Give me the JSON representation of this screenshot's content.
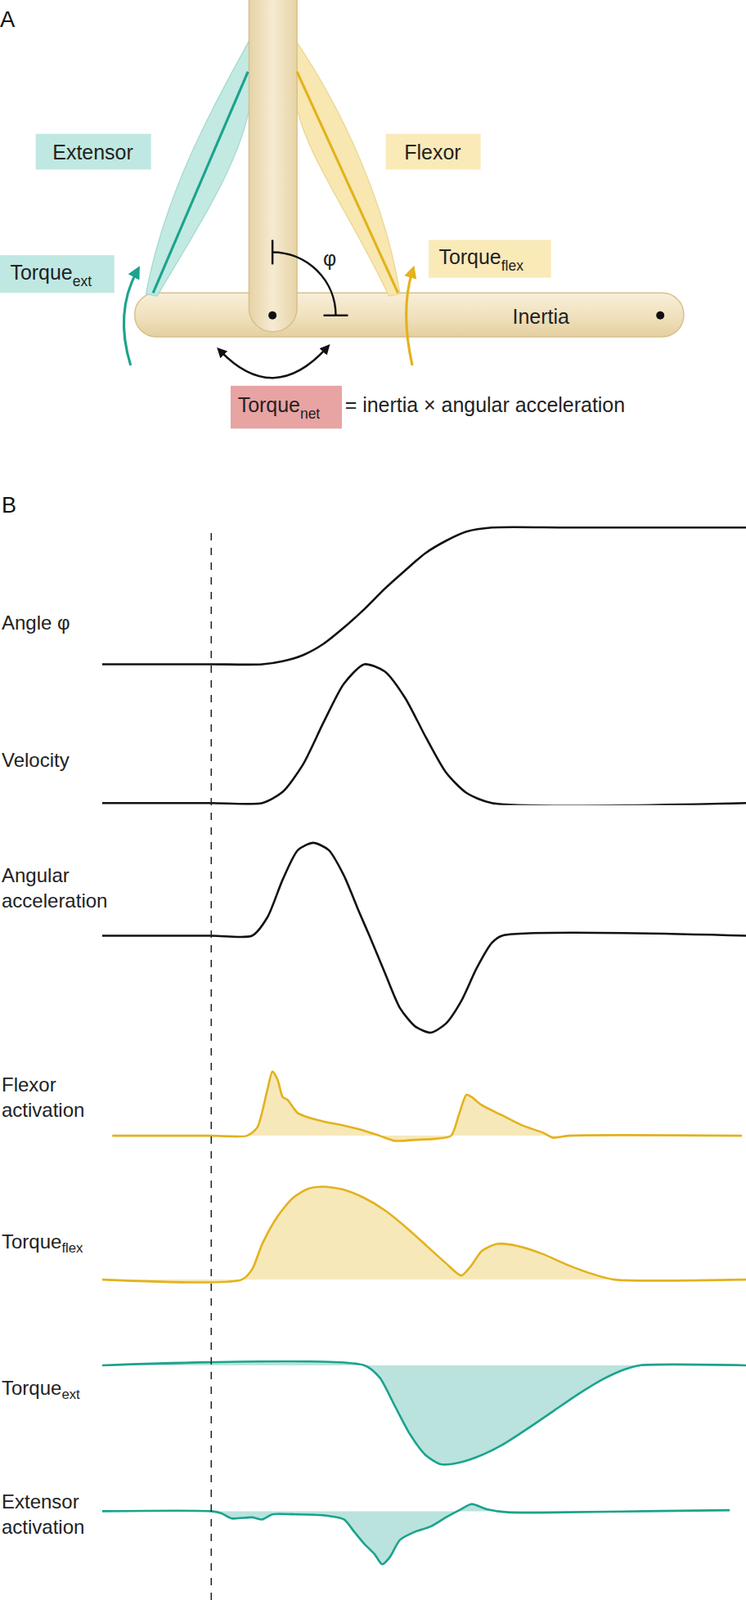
{
  "panel_a": {
    "label": "A",
    "extensor": "Extensor",
    "flexor": "Flexor",
    "torque_ext": {
      "text": "Torque",
      "sub": "ext"
    },
    "torque_flex": {
      "text": "Torque",
      "sub": "flex"
    },
    "angle_symbol": "φ",
    "inertia": "Inertia",
    "equation": {
      "term": {
        "text": "Torque",
        "sub": "net"
      },
      "rest": "= inertia × angular acceleration"
    }
  },
  "panel_b": {
    "label": "B",
    "event_x": 0
  },
  "chart_data": [
    {
      "type": "line",
      "ylabel": [
        "Angle φ"
      ],
      "color": "#111111",
      "tick_labels": false,
      "xlim": [
        -21.4,
        104.8
      ],
      "ylim": [
        -2,
        140
      ],
      "x": [
        -21.4,
        0,
        10,
        14,
        18,
        22,
        26,
        30,
        34,
        38,
        42,
        46,
        50,
        55,
        70,
        104.8
      ],
      "values": [
        0,
        0,
        0,
        3,
        9,
        20,
        36,
        54,
        74,
        92,
        109,
        121,
        130,
        134,
        134,
        134
      ]
    },
    {
      "type": "line",
      "ylabel": [
        "Velocity"
      ],
      "color": "#111111",
      "tick_labels": false,
      "xlim": [
        -21.4,
        104.8
      ],
      "ylim": [
        -2,
        140
      ],
      "x": [
        -21.4,
        0,
        10,
        14,
        18,
        22,
        26,
        30,
        34,
        38,
        42,
        46,
        50,
        55,
        104.8
      ],
      "values": [
        0,
        0,
        0,
        11,
        38,
        79,
        117,
        136,
        129,
        103,
        65,
        30,
        10,
        0,
        0
      ]
    },
    {
      "type": "line",
      "ylabel": [
        "Angular",
        "acceleration"
      ],
      "color": "#111111",
      "tick_labels": false,
      "xlim": [
        -21.4,
        104.8
      ],
      "ylim": [
        -100,
        100
      ],
      "x": [
        -21.4,
        0,
        8,
        11,
        14,
        17,
        20,
        23,
        26,
        29,
        31,
        34,
        37,
        40,
        43,
        46,
        49,
        52,
        55,
        57,
        104.8
      ],
      "values": [
        0,
        0,
        0,
        18,
        55,
        84,
        91,
        84,
        59,
        23,
        0,
        -36,
        -71,
        -89,
        -95,
        -86,
        -64,
        -32,
        -7,
        0,
        0
      ]
    },
    {
      "type": "area",
      "ylabel": [
        "Flexor",
        "activation"
      ],
      "color": "#e3b21c",
      "tick_labels": false,
      "xlim": [
        -21.4,
        104.8
      ],
      "ylim": [
        -10,
        70
      ],
      "x": [
        -19.4,
        0,
        7,
        9,
        11,
        12,
        13,
        14,
        15,
        16,
        17,
        19,
        22,
        26,
        30,
        33,
        36,
        40,
        44,
        47,
        48.5,
        50,
        51,
        53,
        57,
        61,
        65,
        67,
        70,
        104
      ],
      "values": [
        0,
        0,
        0,
        8,
        45,
        63,
        55,
        38,
        35,
        28,
        22,
        18,
        14,
        10,
        5,
        0,
        -5,
        -4,
        -3,
        0,
        20,
        40,
        38,
        30,
        20,
        10,
        3,
        -2,
        0,
        0
      ]
    },
    {
      "type": "area",
      "ylabel": [
        {
          "text": "Torque",
          "sub": "flex"
        }
      ],
      "color": "#e3b21c",
      "tick_labels": false,
      "xlim": [
        -21.4,
        104.8
      ],
      "ylim": [
        -5,
        100
      ],
      "x": [
        -21.4,
        6,
        8,
        10,
        13,
        16,
        19,
        22,
        26,
        30,
        34,
        38,
        42,
        46,
        49,
        51,
        53,
        56,
        60,
        65,
        70,
        75,
        79,
        104.8
      ],
      "values": [
        0,
        0,
        10,
        35,
        62,
        80,
        89,
        91,
        88,
        80,
        68,
        52,
        34,
        16,
        4,
        14,
        28,
        35,
        33,
        25,
        14,
        5,
        0,
        0
      ]
    },
    {
      "type": "area",
      "ylabel": [
        {
          "text": "Torque",
          "sub": "ext"
        }
      ],
      "color": "#1ba38d",
      "tick_labels": false,
      "xlim": [
        -21.4,
        104.8
      ],
      "ylim": [
        -105,
        5
      ],
      "x": [
        -21.4,
        30,
        33,
        36,
        39,
        42,
        45,
        48,
        52,
        57,
        62,
        67,
        72,
        77,
        81,
        84,
        104.8
      ],
      "values": [
        0,
        0,
        -12,
        -40,
        -68,
        -88,
        -97,
        -96,
        -90,
        -78,
        -62,
        -45,
        -28,
        -13,
        -4,
        0,
        0
      ]
    },
    {
      "type": "area",
      "ylabel": [
        "Extensor",
        "activation"
      ],
      "color": "#1ba38d",
      "tick_labels": false,
      "xlim": [
        -21.4,
        104.8
      ],
      "ylim": [
        -60,
        15
      ],
      "x": [
        -21.4,
        0,
        2,
        4,
        8,
        10,
        12,
        16,
        22,
        26,
        28,
        30,
        32,
        33.5,
        35,
        37,
        40,
        43,
        46,
        49,
        51,
        54,
        58,
        70,
        85,
        101.6
      ],
      "values": [
        0,
        0,
        -2,
        -7,
        -6,
        -8,
        -3,
        -3,
        -4,
        -8,
        -20,
        -32,
        -42,
        -52,
        -45,
        -28,
        -20,
        -15,
        -6,
        2,
        7,
        2,
        -1,
        -1,
        0,
        1
      ]
    }
  ]
}
